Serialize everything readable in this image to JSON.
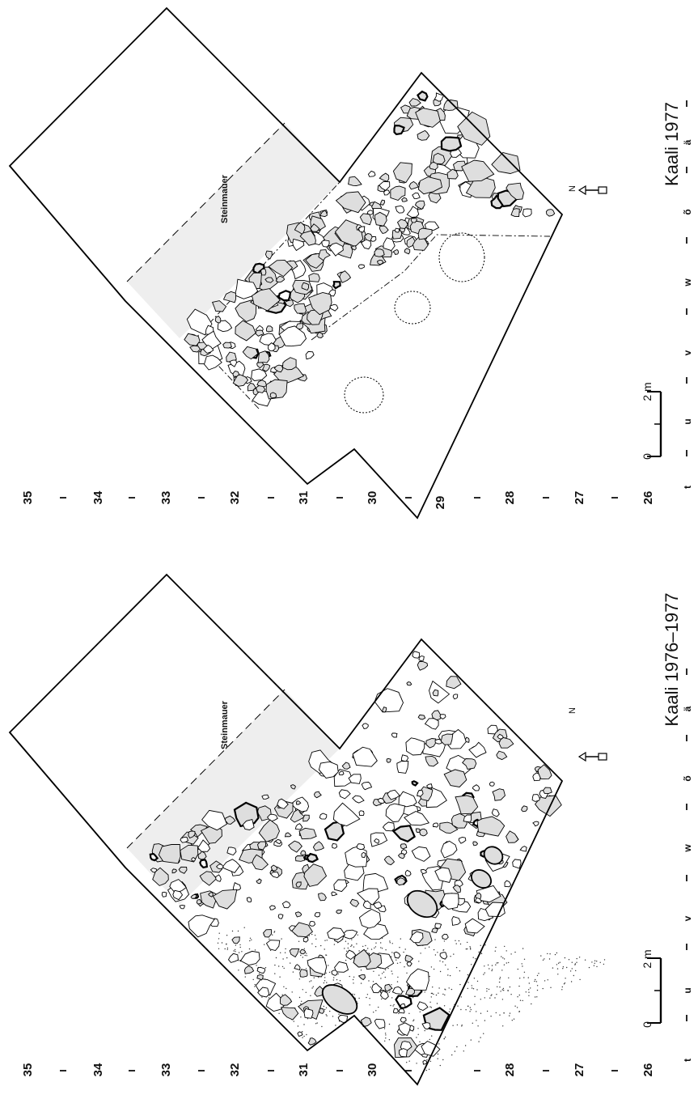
{
  "grid_numbers": [
    "35",
    "34",
    "33",
    "32",
    "31",
    "30",
    "29",
    "28",
    "27",
    "26"
  ],
  "grid_letters": [
    "t",
    "u",
    "v",
    "w",
    "õ",
    "ä"
  ],
  "plans": [
    {
      "id": "upper",
      "title": "Kaali 1977",
      "wall_label": "Steinmauer",
      "north_label": "N",
      "scale_labels": [
        "0",
        "2 m"
      ]
    },
    {
      "id": "lower",
      "title": "Kaali 1976–1977",
      "wall_label": "Steinmauer",
      "north_label": "N",
      "scale_labels": [
        "0",
        "2 m"
      ]
    }
  ],
  "colors": {
    "outline": "#000000",
    "wall_fill": "#eeeeee",
    "stone_fill": "#dedede",
    "faint_stone_fill": "#ececec"
  }
}
